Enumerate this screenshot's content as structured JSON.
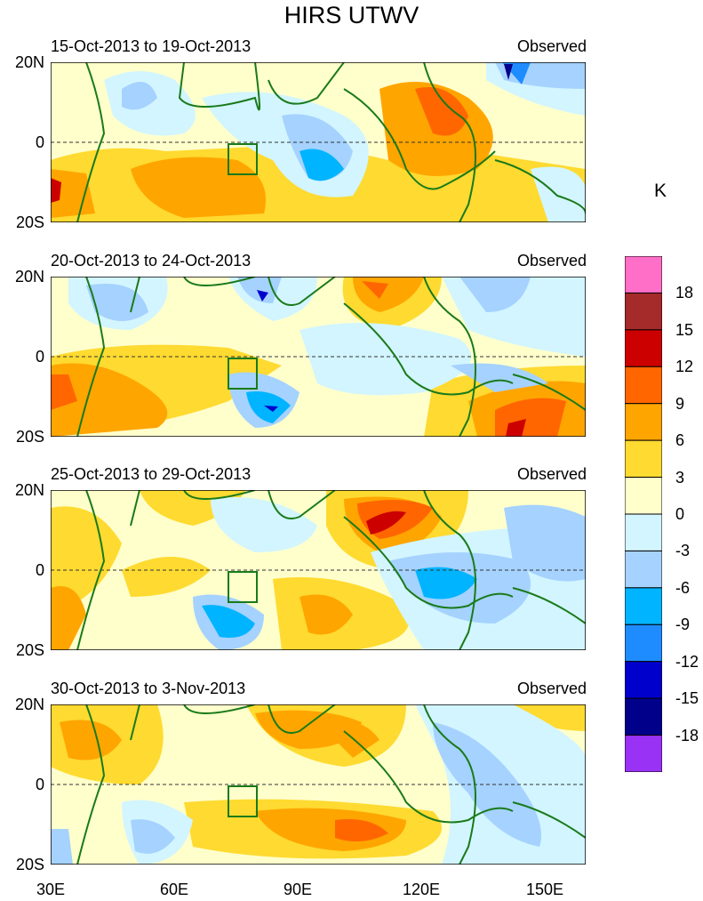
{
  "chart_data": {
    "type": "heatmap",
    "title": "HIRS UTWV",
    "unit": "K",
    "x_ticks": [
      "30E",
      "60E",
      "90E",
      "120E",
      "150E"
    ],
    "y_ticks": [
      "20N",
      "0",
      "20S"
    ],
    "xlim": [
      30,
      160
    ],
    "ylim": [
      -20,
      20
    ],
    "colorbar": {
      "labels": [
        "18",
        "15",
        "12",
        "9",
        "6",
        "3",
        "0",
        "-3",
        "-6",
        "-9",
        "-12",
        "-15",
        "-18"
      ],
      "colors": [
        "#ff6ec7",
        "#a52a2a",
        "#cd0000",
        "#ff6600",
        "#ffa500",
        "#ffda30",
        "#ffffcc",
        "#d2f5ff",
        "#a5d2ff",
        "#00b4ff",
        "#1e8cff",
        "#0000cd",
        "#00008b",
        "#9932f5"
      ]
    },
    "panels": [
      {
        "period": "15-Oct-2013 to 19-Oct-2013",
        "label": "Observed"
      },
      {
        "period": "20-Oct-2013 to 24-Oct-2013",
        "label": "Observed"
      },
      {
        "period": "25-Oct-2013 to 29-Oct-2013",
        "label": "Observed"
      },
      {
        "period": "30-Oct-2013 to 3-Nov-2013",
        "label": "Observed"
      }
    ]
  }
}
